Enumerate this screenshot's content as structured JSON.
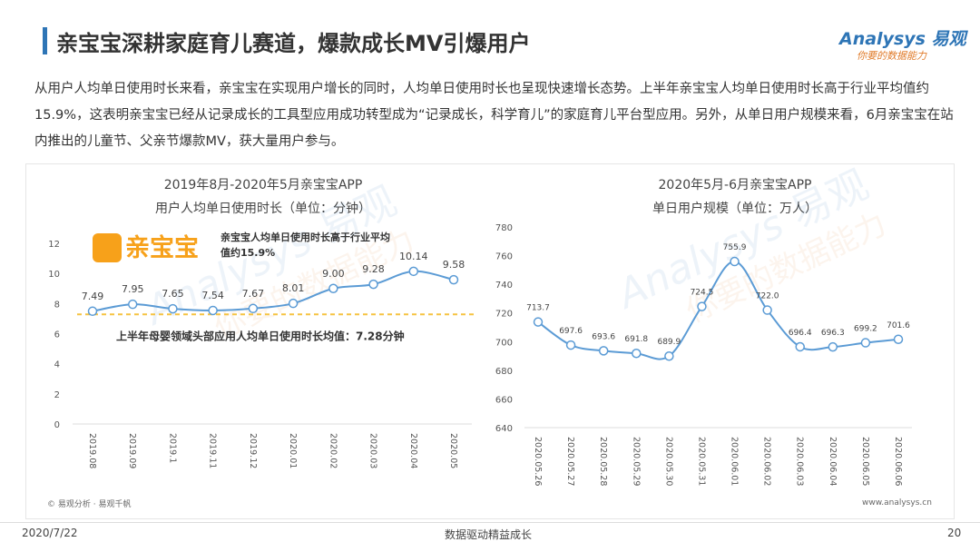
{
  "header": {
    "title": "亲宝宝深耕家庭育儿赛道，爆款成长MV引爆用户",
    "logo_brand": "Analysys",
    "logo_cn": "易观",
    "logo_slogan": "你要的数据能力"
  },
  "body": {
    "paragraph": "从用户人均单日使用时长来看，亲宝宝在实现用户增长的同时，人均单日使用时长也呈现快速增长态势。上半年亲宝宝人均单日使用时长高于行业平均值约15.9%，这表明亲宝宝已经从记录成长的工具型应用成功转型成为“记录成长，科学育儿”的家庭育儿平台型应用。另外，从单日用户规模来看，6月亲宝宝在站内推出的儿童节、父亲节爆款MV，获大量用户参与。"
  },
  "chart_data": [
    {
      "type": "line",
      "title": "2019年8月-2020年5月亲宝宝APP",
      "subtitle": "用户人均单日使用时长（单位：分钟）",
      "categories": [
        "2019.08",
        "2019.09",
        "2019.1",
        "2019.11",
        "2019.12",
        "2020.01",
        "2020.02",
        "2020.03",
        "2020.04",
        "2020.05"
      ],
      "values": [
        7.49,
        7.95,
        7.65,
        7.54,
        7.67,
        8.01,
        9.0,
        9.28,
        10.14,
        9.58
      ],
      "value_labels": [
        "7.49",
        "7.95",
        "7.65",
        "7.54",
        "7.67",
        "8.01",
        "9.00",
        "9.28",
        "10.14",
        "9.58"
      ],
      "color": "#5b9bd5",
      "ylim": [
        0,
        12
      ],
      "yticks": [
        0,
        2,
        4,
        6,
        8,
        10,
        12
      ],
      "grid": false,
      "logo_label": "亲宝宝",
      "annotation": "亲宝宝人均单日使用时长高于行业平均值约15.9%",
      "reference_line": {
        "value": 7.28,
        "label": "上半年母婴领域头部应用人均单日使用时长均值：7.28分钟",
        "color": "#f5c342"
      }
    },
    {
      "type": "line",
      "title": "2020年5月-6月亲宝宝APP",
      "subtitle": "单日用户规模（单位：万人）",
      "categories": [
        "2020.05.26",
        "2020.05.27",
        "2020.05.28",
        "2020.05.29",
        "2020.05.30",
        "2020.05.31",
        "2020.06.01",
        "2020.06.02",
        "2020.06.03",
        "2020.06.04",
        "2020.06.05",
        "2020.06.06"
      ],
      "values": [
        713.7,
        697.6,
        693.6,
        691.8,
        689.9,
        724.5,
        755.9,
        722.0,
        696.4,
        696.3,
        699.2,
        701.6
      ],
      "value_labels": [
        "713.7",
        "697.6",
        "693.6",
        "691.8",
        "689.9",
        "724.5",
        "755.9",
        "722.0",
        "696.4",
        "696.3",
        "699.2",
        "701.6"
      ],
      "color": "#5b9bd5",
      "ylim": [
        640,
        780
      ],
      "yticks": [
        640,
        660,
        680,
        700,
        720,
        740,
        760,
        780
      ],
      "grid": false
    }
  ],
  "panel": {
    "source": "© 易观分析 · 易观千帆",
    "website": "www.analysys.cn"
  },
  "footer": {
    "date": "2020/7/22",
    "center": "数据驱动精益成长",
    "page": "20"
  }
}
